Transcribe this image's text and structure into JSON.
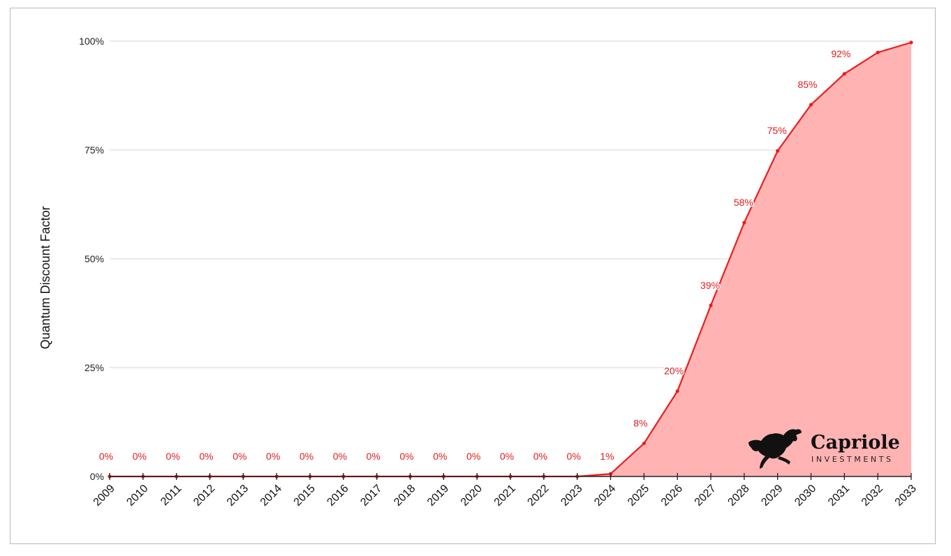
{
  "chart_data": {
    "type": "area",
    "title": "",
    "xlabel": "",
    "ylabel": "Quantum Discount Factor",
    "categories": [
      "2009",
      "2010",
      "2011",
      "2012",
      "2013",
      "2014",
      "2015",
      "2016",
      "2017",
      "2018",
      "2019",
      "2020",
      "2021",
      "2022",
      "2023",
      "2024",
      "2025",
      "2026",
      "2027",
      "2028",
      "2029",
      "2030",
      "2031",
      "2032",
      "2033"
    ],
    "values": [
      0,
      0,
      0,
      0,
      0,
      0,
      0,
      0,
      0,
      0,
      0,
      0,
      0,
      0,
      0,
      0.6,
      7.6,
      19.6,
      39.3,
      58.3,
      74.8,
      85.4,
      92.5,
      97.4,
      99.7
    ],
    "data_labels": [
      "0%",
      "0%",
      "0%",
      "0%",
      "0%",
      "0%",
      "0%",
      "0%",
      "0%",
      "0%",
      "0%",
      "0%",
      "0%",
      "0%",
      "0%",
      "1%",
      "8%",
      "20%",
      "39%",
      "58%",
      "75%",
      "85%",
      "92%",
      "",
      ""
    ],
    "yticks": [
      0,
      25,
      50,
      75,
      100
    ],
    "ytick_labels": [
      "0%",
      "25%",
      "50%",
      "75%",
      "100%"
    ],
    "ylim": [
      0,
      100
    ],
    "grid": true,
    "line_color": "#ee1c1c",
    "fill_color": "#ffb3b3",
    "label_color": "#e31a1c"
  },
  "brand": {
    "name": "Capriole",
    "subtitle": "INVESTMENTS",
    "logo_icon": "horse-icon"
  }
}
